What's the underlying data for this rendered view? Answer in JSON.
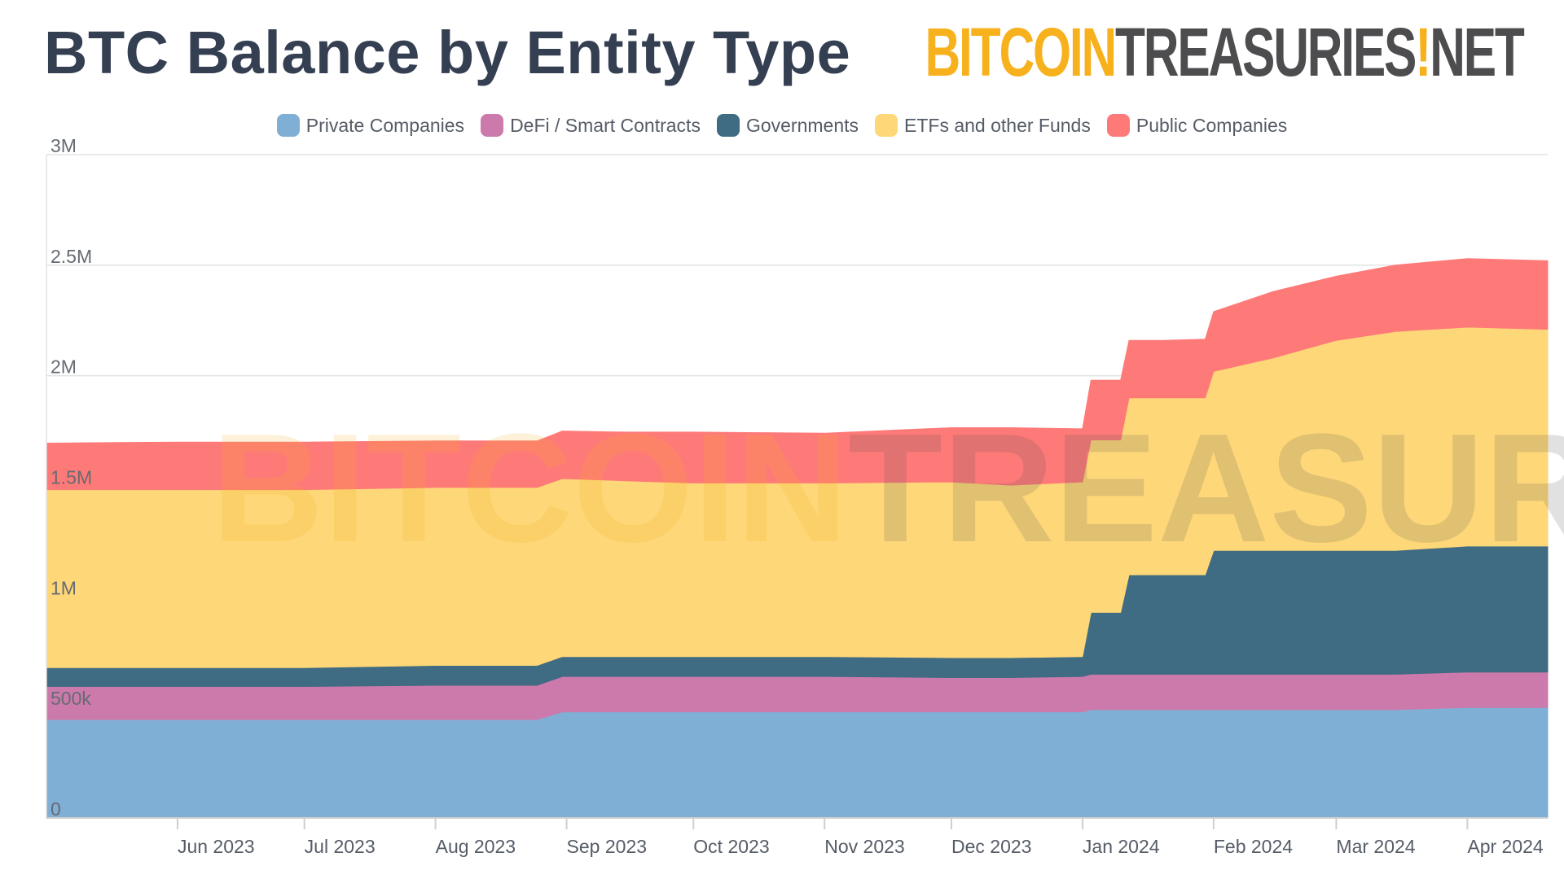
{
  "header": {
    "title": "BTC Balance by Entity Type",
    "logo_part1": "BITCOIN",
    "logo_part2": "TREASURIES",
    "logo_mark": "!",
    "logo_part3": "NET"
  },
  "chart_data": {
    "type": "area",
    "stacked": true,
    "title": "BTC Balance by Entity Type",
    "xlabel": "",
    "ylabel": "",
    "ylim": [
      0,
      3000000
    ],
    "yticks": [
      {
        "value": 0,
        "label": "0"
      },
      {
        "value": 500000,
        "label": "500k"
      },
      {
        "value": 1000000,
        "label": "1M"
      },
      {
        "value": 1500000,
        "label": "1.5M"
      },
      {
        "value": 2000000,
        "label": "2M"
      },
      {
        "value": 2500000,
        "label": "2.5M"
      },
      {
        "value": 3000000,
        "label": "3M"
      }
    ],
    "xlim": [
      "2023-05-01",
      "2024-04-20"
    ],
    "xticks": [
      {
        "date": "2023-06-01",
        "label": "Jun 2023"
      },
      {
        "date": "2023-07-01",
        "label": "Jul 2023"
      },
      {
        "date": "2023-08-01",
        "label": "Aug 2023"
      },
      {
        "date": "2023-09-01",
        "label": "Sep 2023"
      },
      {
        "date": "2023-10-01",
        "label": "Oct 2023"
      },
      {
        "date": "2023-11-01",
        "label": "Nov 2023"
      },
      {
        "date": "2023-12-01",
        "label": "Dec 2023"
      },
      {
        "date": "2024-01-01",
        "label": "Jan 2024"
      },
      {
        "date": "2024-02-01",
        "label": "Feb 2024"
      },
      {
        "date": "2024-03-01",
        "label": "Mar 2024"
      },
      {
        "date": "2024-04-01",
        "label": "Apr 2024"
      }
    ],
    "grid": true,
    "legend_position": "top-center",
    "x": [
      "2023-05-01",
      "2023-06-01",
      "2023-07-01",
      "2023-08-01",
      "2023-08-25",
      "2023-08-31",
      "2023-09-15",
      "2023-10-01",
      "2023-11-01",
      "2023-12-01",
      "2023-12-15",
      "2024-01-01",
      "2024-01-03",
      "2024-01-10",
      "2024-01-12",
      "2024-01-20",
      "2024-01-30",
      "2024-02-01",
      "2024-02-15",
      "2024-03-01",
      "2024-03-15",
      "2024-04-01",
      "2024-04-20"
    ],
    "series": [
      {
        "name": "Private Companies",
        "color": "#7fafd4",
        "values": [
          445000,
          445000,
          445000,
          445000,
          445000,
          480000,
          480000,
          480000,
          480000,
          480000,
          480000,
          480000,
          490000,
          490000,
          490000,
          490000,
          490000,
          490000,
          490000,
          490000,
          490000,
          500000,
          500000
        ]
      },
      {
        "name": "DeFi / Smart Contracts",
        "color": "#cc7aab",
        "values": [
          150000,
          150000,
          150000,
          155000,
          155000,
          160000,
          160000,
          160000,
          160000,
          155000,
          155000,
          160000,
          160000,
          160000,
          160000,
          160000,
          160000,
          160000,
          160000,
          160000,
          160000,
          160000,
          160000
        ]
      },
      {
        "name": "Governments",
        "color": "#3f6b83",
        "values": [
          85000,
          85000,
          85000,
          90000,
          90000,
          90000,
          90000,
          90000,
          90000,
          90000,
          90000,
          90000,
          280000,
          280000,
          450000,
          450000,
          450000,
          560000,
          560000,
          560000,
          560000,
          570000,
          570000
        ]
      },
      {
        "name": "ETFs and other Funds",
        "color": "#fed778",
        "values": [
          805000,
          805000,
          805000,
          805000,
          805000,
          805000,
          795000,
          785000,
          785000,
          795000,
          780000,
          790000,
          780000,
          780000,
          800000,
          800000,
          800000,
          810000,
          870000,
          950000,
          990000,
          990000,
          980000
        ]
      },
      {
        "name": "Public Companies",
        "color": "#fe7a78",
        "values": [
          210000,
          215000,
          215000,
          210000,
          210000,
          215000,
          220000,
          230000,
          225000,
          245000,
          260000,
          240000,
          270000,
          270000,
          260000,
          260000,
          265000,
          270000,
          300000,
          290000,
          300000,
          310000,
          310000
        ]
      }
    ]
  }
}
